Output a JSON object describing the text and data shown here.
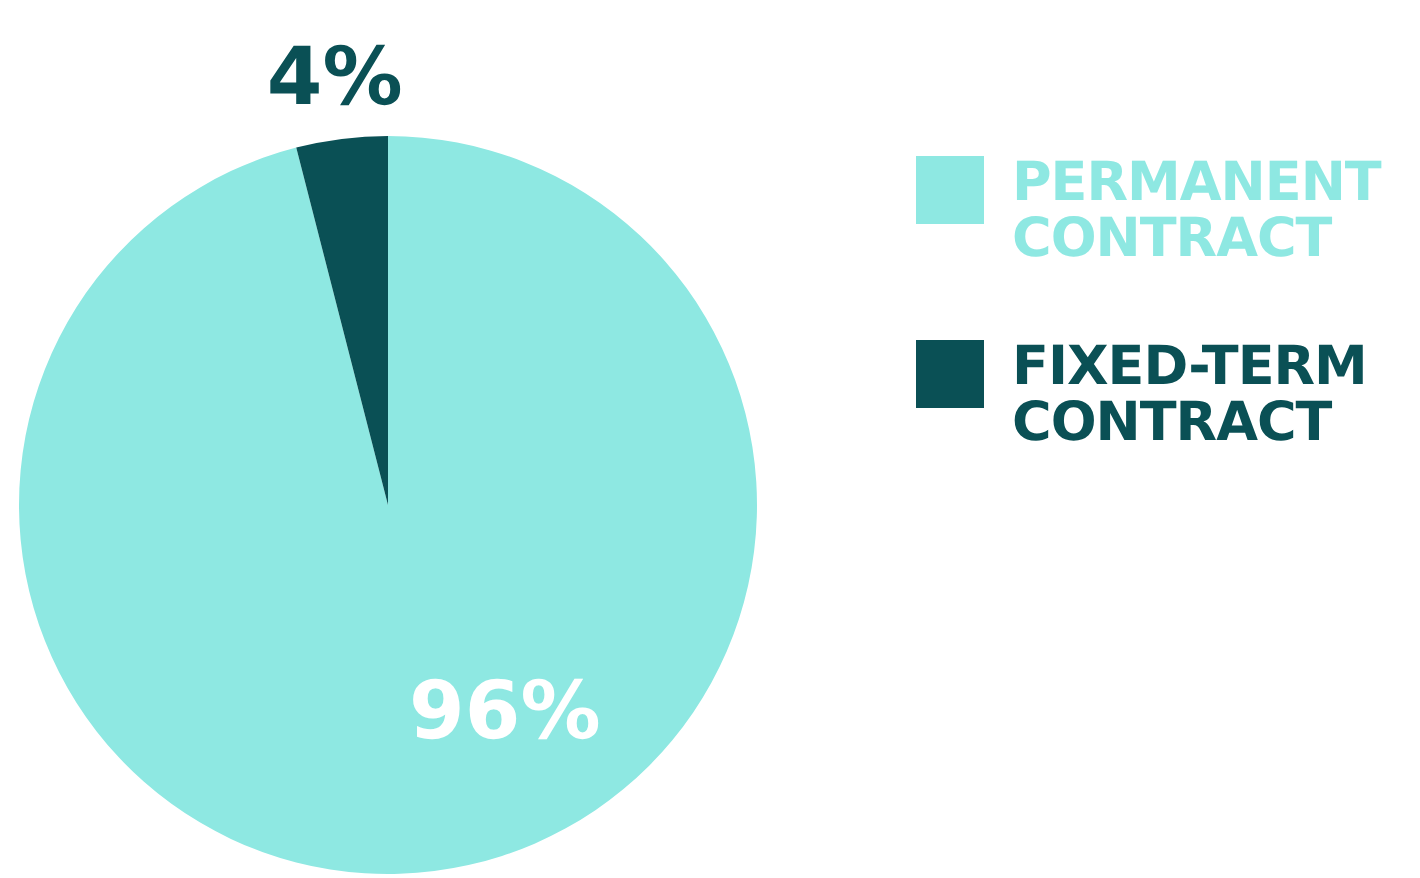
{
  "chart_data": {
    "type": "pie",
    "categories": [
      "PERMANENT CONTRACT",
      "FIXED-TERM CONTRACT"
    ],
    "values": [
      96,
      4
    ],
    "colors": [
      "#8ee8e2",
      "#0a5055"
    ],
    "value_labels": [
      "96%",
      "4%"
    ],
    "legend": "right"
  }
}
